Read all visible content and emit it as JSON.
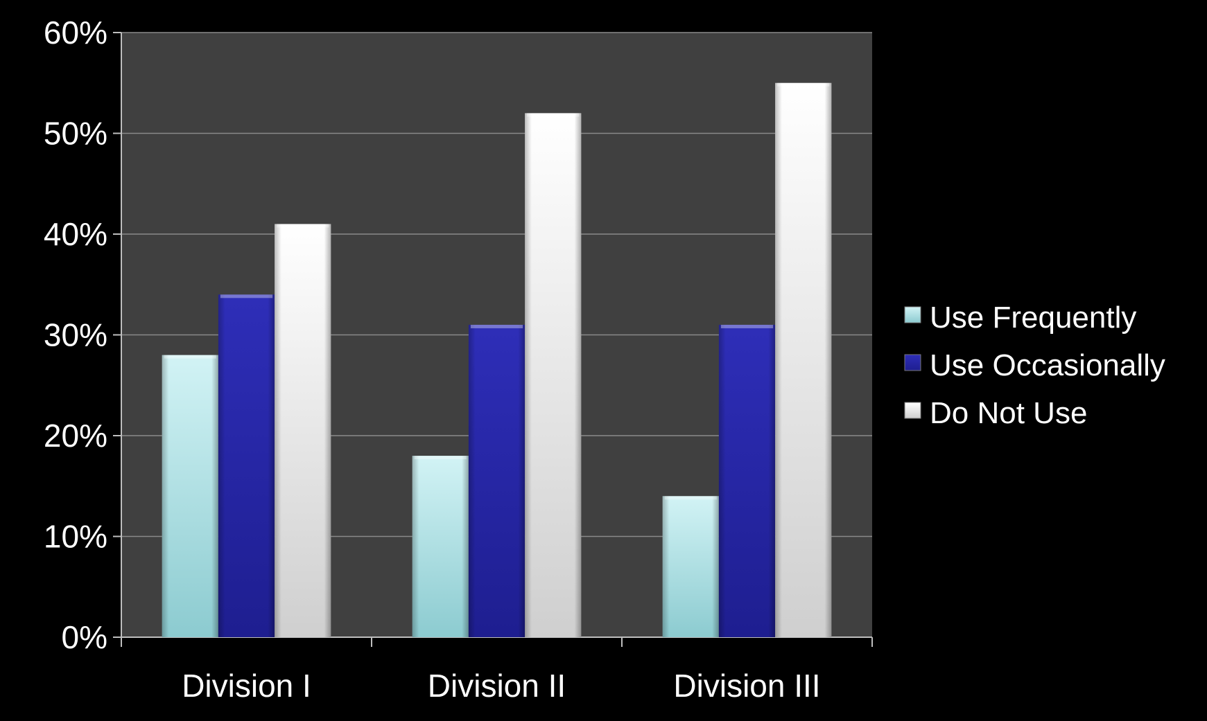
{
  "chart_data": {
    "type": "bar",
    "categories": [
      "Division I",
      "Division II",
      "Division III"
    ],
    "series": [
      {
        "name": "Use Frequently",
        "values": [
          28,
          18,
          14
        ],
        "color": "#b6e6ea"
      },
      {
        "name": "Use Occasionally",
        "values": [
          34,
          31,
          31
        ],
        "color": "#2626a6"
      },
      {
        "name": "Do Not Use",
        "values": [
          41,
          52,
          55
        ],
        "color": "#f2f2f2"
      }
    ],
    "ylim": [
      0,
      60
    ],
    "yticks": [
      0,
      10,
      20,
      30,
      40,
      50,
      60
    ],
    "ytick_labels": [
      "0%",
      "10%",
      "20%",
      "30%",
      "40%",
      "50%",
      "60%"
    ],
    "title": "",
    "xlabel": "",
    "ylabel": "",
    "grid": true,
    "legend_position": "right",
    "plot_background": "#404040",
    "page_background": "#000000",
    "gridline_color": "#8a8a8a"
  }
}
